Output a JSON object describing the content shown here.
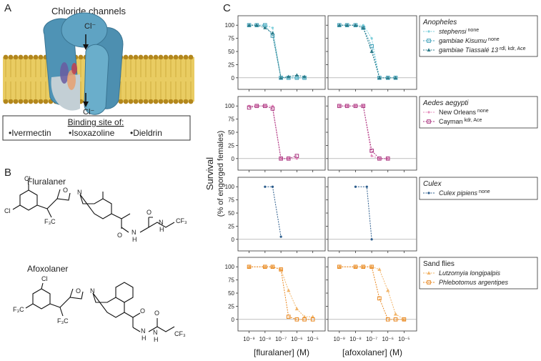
{
  "panel_a": {
    "label": "A",
    "title": "Chloride channels",
    "ion_top": "Cl⁻",
    "ion_bottom": "Cl⁻",
    "legend_title": "Binding site of:",
    "sites": [
      {
        "text": "•Ivermectin",
        "color": "#5a5aa8"
      },
      {
        "text": "•Isoxazoline",
        "color": "#e8a268"
      },
      {
        "text": "•Dieldrin",
        "color": "#c23a48"
      }
    ]
  },
  "panel_b": {
    "label": "B",
    "structures": [
      {
        "name": "Fluralaner",
        "atoms": [
          "Cl",
          "Cl",
          "O",
          "N",
          "F₃C",
          "O",
          "N",
          "H",
          "O",
          "N",
          "H",
          "CF₃"
        ]
      },
      {
        "name": "Afoxolaner",
        "atoms": [
          "Cl",
          "F₃C",
          "O",
          "N",
          "F₃C",
          "O",
          "N",
          "H",
          "O",
          "N",
          "H",
          "CF₃"
        ]
      }
    ]
  },
  "panel_c": {
    "label": "C",
    "y_label": "Survival",
    "y_sublabel": "(% of engorged females)",
    "x_labels": [
      "[fluralaner] (M)",
      "[afoxolaner] (M)"
    ]
  },
  "chart_data": [
    {
      "type": "line",
      "legend_title": "Anopheles",
      "title_italic": true,
      "x_log": true,
      "zero_line": true,
      "xlim": [
        2e-10,
        6e-05
      ],
      "xticks": [
        {
          "value": 1e-09,
          "label": "10⁻⁹"
        },
        {
          "value": 1e-08,
          "label": "10⁻⁸"
        },
        {
          "value": 1e-07,
          "label": "10⁻⁷"
        },
        {
          "value": 1e-06,
          "label": "10⁻⁶"
        },
        {
          "value": 1e-05,
          "label": "10⁻⁵"
        }
      ],
      "ylim": [
        -22,
        118
      ],
      "yticks": [
        0,
        25,
        50,
        75,
        100
      ],
      "series": [
        {
          "name": "stephensi",
          "italic": true,
          "superscript": "none",
          "color": "#7fd0dc",
          "marker": "dot",
          "fluralaner": {
            "x": [
              1e-09,
              3e-09,
              1e-08,
              3e-08,
              1e-07,
              3e-07,
              1e-06,
              3e-06
            ],
            "values": [
              100,
              100,
              100,
              95,
              0,
              0,
              0,
              0
            ]
          },
          "afoxolaner": {
            "x": [
              1e-09,
              3e-09,
              1e-08,
              3e-08,
              1e-07,
              3e-07,
              1e-06,
              3e-06
            ],
            "values": [
              100,
              100,
              100,
              100,
              75,
              0,
              0,
              0
            ]
          }
        },
        {
          "name": "gambiae Kisumu",
          "italic": true,
          "superscript": "none",
          "color": "#3d9fb8",
          "marker": "square",
          "fluralaner": {
            "x": [
              1e-09,
              3e-09,
              1e-08,
              3e-08,
              1e-07,
              3e-07,
              1e-06,
              3e-06
            ],
            "values": [
              100,
              100,
              100,
              80,
              0,
              0,
              0,
              0
            ]
          },
          "afoxolaner": {
            "x": [
              1e-09,
              3e-09,
              1e-08,
              3e-08,
              1e-07,
              3e-07,
              1e-06,
              3e-06
            ],
            "values": [
              100,
              100,
              100,
              95,
              60,
              0,
              0,
              0
            ]
          }
        },
        {
          "name": "gambiae Tiassalé 13",
          "italic": true,
          "superscript": "rdl, kdr, Ace",
          "color": "#2c7a88",
          "marker": "triangle",
          "fluralaner": {
            "x": [
              1e-09,
              3e-09,
              1e-08,
              3e-08,
              1e-07,
              3e-07,
              1e-06,
              3e-06
            ],
            "values": [
              100,
              100,
              95,
              85,
              0,
              2,
              5,
              2
            ]
          },
          "afoxolaner": {
            "x": [
              1e-09,
              3e-09,
              1e-08,
              3e-08,
              1e-07,
              3e-07,
              1e-06,
              3e-06
            ],
            "values": [
              100,
              100,
              100,
              95,
              50,
              0,
              0,
              0
            ]
          }
        }
      ]
    },
    {
      "type": "line",
      "legend_title": "Aedes aegypti",
      "title_italic": true,
      "x_log": true,
      "zero_line": true,
      "xlim": [
        2e-10,
        6e-05
      ],
      "xticks": [
        {
          "value": 1e-09,
          "label": "10⁻⁹"
        },
        {
          "value": 1e-08,
          "label": "10⁻⁸"
        },
        {
          "value": 1e-07,
          "label": "10⁻⁷"
        },
        {
          "value": 1e-06,
          "label": "10⁻⁶"
        },
        {
          "value": 1e-05,
          "label": "10⁻⁵"
        }
      ],
      "ylim": [
        -22,
        118
      ],
      "yticks": [
        0,
        25,
        50,
        75,
        100
      ],
      "series": [
        {
          "name": "New Orleans",
          "italic": false,
          "superscript": "none",
          "color": "#e48cbc",
          "marker": "dot",
          "fluralaner": {
            "x": [
              1e-09,
              3e-09,
              1e-08,
              3e-08,
              1e-07,
              3e-07,
              1e-06
            ],
            "values": [
              100,
              100,
              100,
              100,
              0,
              0,
              0
            ]
          },
          "afoxolaner": {
            "x": [
              1e-09,
              3e-09,
              1e-08,
              3e-08,
              1e-07,
              3e-07,
              1e-06
            ],
            "values": [
              100,
              100,
              100,
              100,
              5,
              0,
              0
            ]
          }
        },
        {
          "name": "Cayman",
          "italic": false,
          "superscript": "kdr, Ace",
          "color": "#a8327e",
          "marker": "square",
          "fluralaner": {
            "x": [
              1e-09,
              3e-09,
              1e-08,
              3e-08,
              1e-07,
              3e-07,
              1e-06
            ],
            "values": [
              97,
              100,
              100,
              95,
              0,
              0,
              5
            ]
          },
          "afoxolaner": {
            "x": [
              1e-09,
              3e-09,
              1e-08,
              3e-08,
              1e-07,
              3e-07,
              1e-06
            ],
            "values": [
              100,
              100,
              100,
              100,
              15,
              0,
              0
            ]
          }
        }
      ]
    },
    {
      "type": "line",
      "legend_title": "Culex",
      "title_italic": true,
      "x_log": true,
      "zero_line": true,
      "xlim": [
        2e-10,
        6e-05
      ],
      "xticks": [
        {
          "value": 1e-09,
          "label": "10⁻⁹"
        },
        {
          "value": 1e-08,
          "label": "10⁻⁸"
        },
        {
          "value": 1e-07,
          "label": "10⁻⁷"
        },
        {
          "value": 1e-06,
          "label": "10⁻⁶"
        },
        {
          "value": 1e-05,
          "label": "10⁻⁵"
        }
      ],
      "ylim": [
        -22,
        118
      ],
      "yticks": [
        0,
        25,
        50,
        75,
        100
      ],
      "series": [
        {
          "name": "Culex pipiens",
          "italic": true,
          "superscript": "none",
          "color": "#2b5c8c",
          "marker": "dot",
          "fluralaner": {
            "x": [
              1e-08,
              3e-08,
              1e-07
            ],
            "values": [
              100,
              100,
              5
            ]
          },
          "afoxolaner": {
            "x": [
              1e-08,
              5e-08,
              1e-07
            ],
            "values": [
              100,
              100,
              0
            ]
          }
        }
      ]
    },
    {
      "type": "line",
      "legend_title": "Sand flies",
      "title_italic": false,
      "x_log": true,
      "zero_line": true,
      "xlim": [
        2e-10,
        6e-05
      ],
      "xticks": [
        {
          "value": 1e-09,
          "label": "10⁻⁹"
        },
        {
          "value": 1e-08,
          "label": "10⁻⁸"
        },
        {
          "value": 1e-07,
          "label": "10⁻⁷"
        },
        {
          "value": 1e-06,
          "label": "10⁻⁶"
        },
        {
          "value": 1e-05,
          "label": "10⁻⁵"
        }
      ],
      "ylim": [
        -22,
        118
      ],
      "yticks": [
        0,
        25,
        50,
        75,
        100
      ],
      "series": [
        {
          "name": "Lutzomyia longipalpis",
          "italic": true,
          "color": "#f2b468",
          "marker": "triangle",
          "fluralaner": {
            "x": [
              1e-09,
              1e-08,
              3e-08,
              1e-07,
              3e-07,
              1e-06,
              3e-06,
              1e-05
            ],
            "values": [
              100,
              100,
              100,
              95,
              55,
              20,
              5,
              5
            ]
          },
          "afoxolaner": {
            "x": [
              1e-09,
              1e-08,
              3e-08,
              1e-07,
              3e-07,
              1e-06,
              3e-06,
              1e-05
            ],
            "values": [
              100,
              100,
              100,
              100,
              95,
              55,
              10,
              0
            ]
          }
        },
        {
          "name": "Phlebotomus argentipes",
          "italic": true,
          "color": "#e8861e",
          "marker": "square",
          "fluralaner": {
            "x": [
              1e-09,
              1e-08,
              3e-08,
              1e-07,
              3e-07,
              1e-06,
              3e-06,
              1e-05
            ],
            "values": [
              100,
              100,
              100,
              95,
              5,
              0,
              0,
              0
            ]
          },
          "afoxolaner": {
            "x": [
              1e-09,
              1e-08,
              3e-08,
              1e-07,
              3e-07,
              1e-06,
              3e-06,
              1e-05
            ],
            "values": [
              100,
              100,
              100,
              100,
              40,
              0,
              0,
              0
            ]
          }
        }
      ]
    }
  ]
}
